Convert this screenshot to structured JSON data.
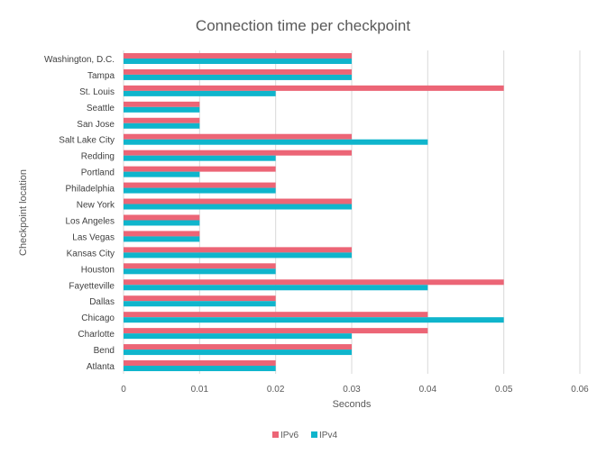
{
  "chart_data": {
    "type": "bar",
    "orientation": "horizontal",
    "title": "Connection time per checkpoint",
    "xlabel": "Seconds",
    "ylabel": "Checkpoint  location",
    "xlim": [
      0,
      0.06
    ],
    "xticks": [
      "0",
      "0.01",
      "0.02",
      "0.03",
      "0.04",
      "0.05",
      "0.06"
    ],
    "grid": true,
    "legend_position": "bottom",
    "categories": [
      "Washington, D.C.",
      "Tampa",
      "St. Louis",
      "Seattle",
      "San Jose",
      "Salt Lake City",
      "Redding",
      "Portland",
      "Philadelphia",
      "New York",
      "Los Angeles",
      "Las Vegas",
      "Kansas City",
      "Houston",
      "Fayetteville",
      "Dallas",
      "Chicago",
      "Charlotte",
      "Bend",
      "Atlanta"
    ],
    "series": [
      {
        "name": "IPv6",
        "color": "#ec6576",
        "values": [
          0.03,
          0.03,
          0.05,
          0.01,
          0.01,
          0.03,
          0.03,
          0.02,
          0.02,
          0.03,
          0.01,
          0.01,
          0.03,
          0.02,
          0.05,
          0.02,
          0.04,
          0.04,
          0.03,
          0.02
        ]
      },
      {
        "name": "IPv4",
        "color": "#0fb5cc",
        "values": [
          0.03,
          0.03,
          0.02,
          0.01,
          0.01,
          0.04,
          0.02,
          0.01,
          0.02,
          0.03,
          0.01,
          0.01,
          0.03,
          0.02,
          0.04,
          0.02,
          0.05,
          0.03,
          0.03,
          0.02
        ]
      }
    ]
  }
}
